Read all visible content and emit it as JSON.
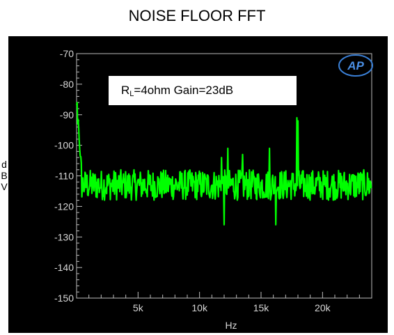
{
  "chart_data": {
    "type": "line",
    "title": "NOISE FLOOR FFT",
    "xlabel": "Hz",
    "ylabel": "dBV",
    "ylabel_chars": [
      "d",
      "B",
      "V"
    ],
    "xlim": [
      0,
      24000
    ],
    "ylim": [
      -150,
      -70
    ],
    "x_ticks": [
      {
        "value": 5000,
        "label": "5k"
      },
      {
        "value": 10000,
        "label": "10k"
      },
      {
        "value": 15000,
        "label": "15k"
      },
      {
        "value": 20000,
        "label": "20k"
      }
    ],
    "y_ticks": [
      {
        "value": -70,
        "label": "-70"
      },
      {
        "value": -80,
        "label": "-80"
      },
      {
        "value": -90,
        "label": "-90"
      },
      {
        "value": -100,
        "label": "-100"
      },
      {
        "value": -110,
        "label": "-110"
      },
      {
        "value": -120,
        "label": "-120"
      },
      {
        "value": -130,
        "label": "-130"
      },
      {
        "value": -140,
        "label": "-140"
      },
      {
        "value": -150,
        "label": "-150"
      }
    ],
    "grid": false,
    "annotation": {
      "prefix": "R",
      "subscript": "L",
      "rest": "=4ohm Gain=23dB"
    },
    "series": [
      {
        "color": "#00ff00",
        "noise_floor_dbv": -113,
        "noise_spread_dbv": 5,
        "spikes": [
          {
            "x": 50,
            "y": -86
          },
          {
            "x": 100,
            "y": -93
          },
          {
            "x": 11800,
            "y": -104
          },
          {
            "x": 12000,
            "y": -126
          },
          {
            "x": 12300,
            "y": -101
          },
          {
            "x": 13500,
            "y": -103
          },
          {
            "x": 15700,
            "y": -101
          },
          {
            "x": 16200,
            "y": -126
          },
          {
            "x": 17900,
            "y": -91
          },
          {
            "x": 18000,
            "y": -92
          }
        ]
      }
    ]
  },
  "logo": {
    "text": "AP"
  }
}
